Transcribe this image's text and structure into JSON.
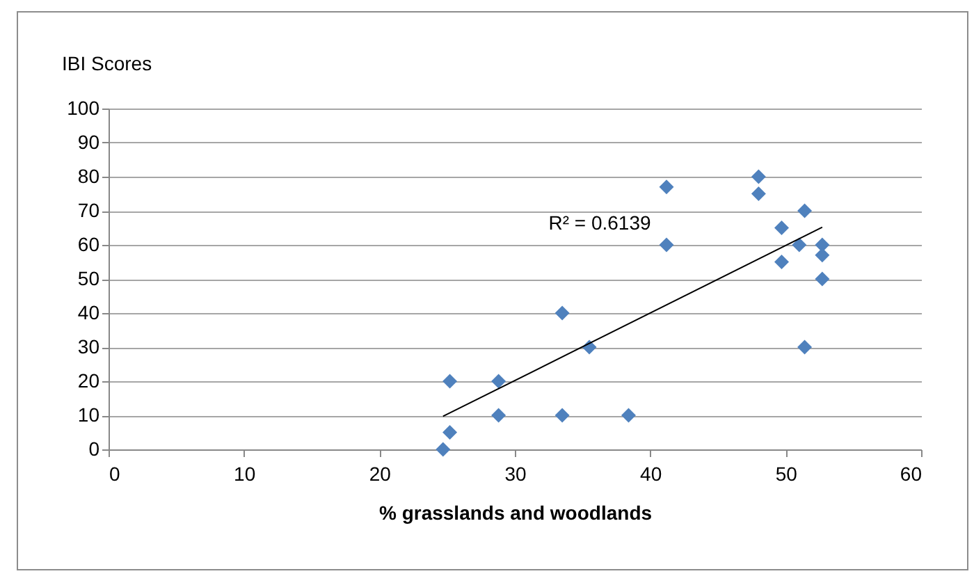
{
  "chart_data": {
    "type": "scatter",
    "ylabel": "IBI Scores",
    "xlabel": "% grasslands and woodlands",
    "x": [
      24.7,
      25.2,
      25.2,
      28.8,
      28.8,
      33.5,
      33.5,
      35.5,
      38.4,
      41.2,
      41.2,
      48.0,
      48.0,
      49.7,
      49.7,
      51.4,
      51.0,
      51.4,
      52.7,
      52.7,
      52.7
    ],
    "series": [
      {
        "color": "#4f81bd",
        "values": [
          0,
          5,
          20,
          20,
          10,
          40,
          10,
          30,
          10,
          77,
          60,
          80,
          75,
          65,
          55,
          70,
          60,
          30,
          60,
          57,
          50
        ]
      },
      {
        "type": "line",
        "color": "#000000",
        "x": [
          24.7,
          52.7
        ],
        "values": [
          9.7,
          65.2
        ],
        "marker": "none"
      }
    ],
    "annotations": [
      "R² = 0.6139"
    ],
    "xlim": [
      0,
      60
    ],
    "xticks": [
      0,
      10,
      20,
      30,
      40,
      50,
      60
    ],
    "ylim": [
      0,
      100
    ],
    "yticks": [
      0,
      10,
      20,
      30,
      40,
      50,
      60,
      70,
      80,
      90,
      100
    ],
    "grid": "y",
    "marker": "diamond"
  }
}
